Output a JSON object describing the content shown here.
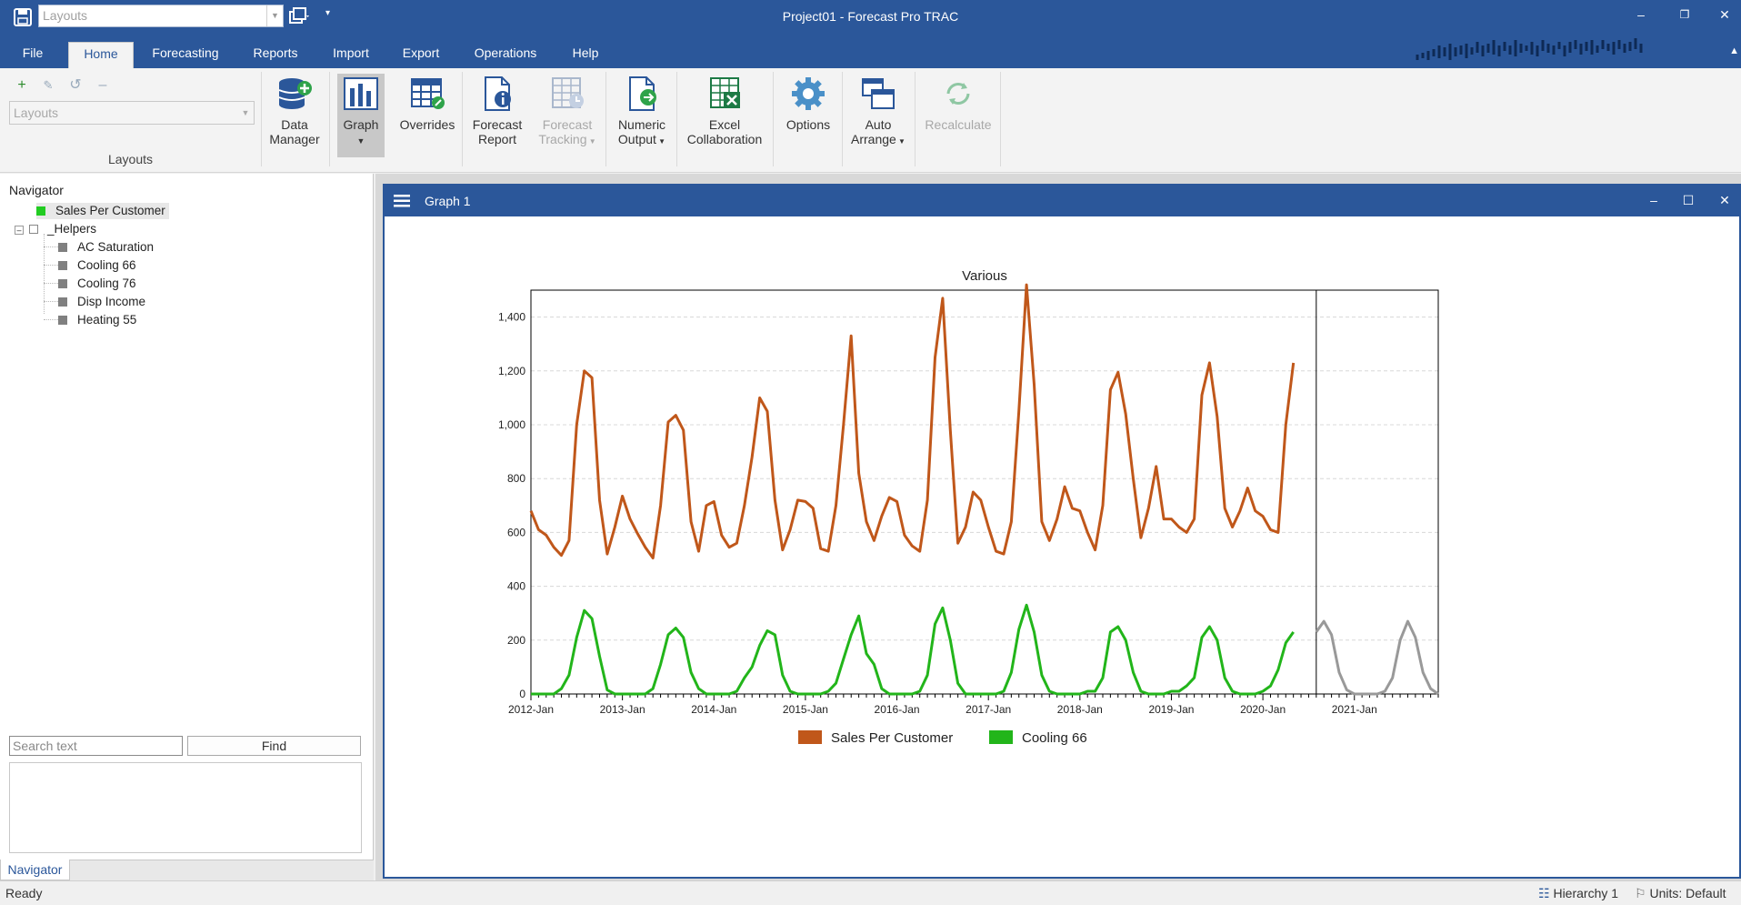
{
  "titlebar": {
    "layouts_combo": "Layouts",
    "title": "Project01 - Forecast Pro TRAC",
    "minimize": "–",
    "restore": "❐",
    "close": "✕"
  },
  "tabs": [
    "File",
    "Home",
    "Forecasting",
    "Reports",
    "Import",
    "Export",
    "Operations",
    "Help"
  ],
  "active_tab": "Home",
  "ribbon": {
    "layouts_combo": "Layouts",
    "layouts_group_label": "Layouts",
    "buttons": [
      {
        "line1": "Data",
        "line2": "Manager",
        "icon": "database-add-icon"
      },
      {
        "line1": "Graph",
        "line2": "",
        "icon": "graph-icon",
        "dropdown": true
      },
      {
        "line1": "Overrides",
        "line2": "",
        "icon": "table-edit-icon"
      },
      {
        "line1": "Forecast",
        "line2": "Report",
        "icon": "report-info-icon"
      },
      {
        "line1": "Forecast",
        "line2": "Tracking",
        "icon": "tracking-icon",
        "dropdown": true
      },
      {
        "line1": "Numeric",
        "line2": "Output",
        "icon": "export-icon",
        "dropdown": true
      },
      {
        "line1": "Excel",
        "line2": "Collaboration",
        "icon": "excel-icon"
      },
      {
        "line1": "Options",
        "line2": "",
        "icon": "gear-icon"
      },
      {
        "line1": "Auto",
        "line2": "Arrange",
        "icon": "arrange-icon",
        "dropdown": true
      },
      {
        "line1": "Recalculate",
        "line2": "",
        "icon": "refresh-icon"
      }
    ]
  },
  "navigator": {
    "title": "Navigator",
    "root": "Sales Per Customer",
    "group": "_Helpers",
    "children": [
      "AC Saturation",
      "Cooling 66",
      "Cooling 76",
      "Disp Income",
      "Heating 55"
    ],
    "search_placeholder": "Search text",
    "find_label": "Find",
    "tab_label": "Navigator"
  },
  "graph_window": {
    "title": "Graph 1",
    "minimize": "–",
    "maximize": "☐",
    "close": "✕"
  },
  "chart_data": {
    "type": "line",
    "title": "Various",
    "xlabel": "",
    "ylabel": "",
    "ylim": [
      0,
      1500
    ],
    "yticks": [
      0,
      200,
      400,
      600,
      800,
      1000,
      1200,
      1400
    ],
    "ytick_labels": [
      "0",
      "200",
      "400",
      "600",
      "800",
      "1,000",
      "1,200",
      "1,400"
    ],
    "x_labels": [
      "2012-Jan",
      "2013-Jan",
      "2014-Jan",
      "2015-Jan",
      "2016-Jan",
      "2017-Jan",
      "2018-Jan",
      "2019-Jan",
      "2020-Jan",
      "2021-Jan"
    ],
    "x_start": "2012-01",
    "x_end": "2021-12",
    "forecast_origin": "2020-08",
    "grid": true,
    "legend_position": "bottom",
    "series": [
      {
        "name": "Sales Per Customer",
        "color": "#c0571a",
        "values": [
          680,
          610,
          590,
          545,
          515,
          570,
          1000,
          1200,
          1175,
          720,
          520,
          620,
          735,
          650,
          595,
          545,
          505,
          700,
          1010,
          1035,
          980,
          640,
          530,
          700,
          715,
          590,
          545,
          560,
          700,
          880,
          1100,
          1050,
          720,
          535,
          610,
          720,
          715,
          690,
          540,
          530,
          700,
          1000,
          1330,
          820,
          640,
          570,
          660,
          730,
          715,
          590,
          550,
          530,
          720,
          1250,
          1470,
          980,
          560,
          620,
          750,
          720,
          620,
          530,
          520,
          640,
          1050,
          1520,
          1150,
          640,
          570,
          650,
          770,
          690,
          680,
          600,
          535,
          700,
          1130,
          1195,
          1040,
          800,
          580,
          690,
          845,
          650,
          650,
          620,
          600,
          650,
          1110,
          1230,
          1030,
          690,
          620,
          680,
          765,
          680,
          660,
          610,
          600,
          1000,
          1230
        ]
      },
      {
        "name": "Cooling 66",
        "color": "#22b51a",
        "values": [
          0,
          0,
          0,
          0,
          20,
          70,
          210,
          310,
          280,
          140,
          15,
          0,
          0,
          0,
          0,
          0,
          20,
          110,
          220,
          245,
          210,
          80,
          20,
          0,
          0,
          0,
          0,
          10,
          60,
          100,
          180,
          235,
          220,
          70,
          10,
          0,
          0,
          0,
          0,
          10,
          40,
          130,
          220,
          290,
          150,
          110,
          20,
          0,
          0,
          0,
          0,
          10,
          70,
          260,
          320,
          200,
          40,
          0,
          0,
          0,
          0,
          0,
          10,
          80,
          240,
          330,
          230,
          70,
          10,
          0,
          0,
          0,
          0,
          10,
          10,
          60,
          230,
          250,
          200,
          80,
          10,
          0,
          0,
          0,
          10,
          10,
          30,
          60,
          210,
          250,
          200,
          60,
          10,
          0,
          0,
          0,
          10,
          30,
          90,
          190,
          230
        ]
      },
      {
        "name": "Cooling 66 forecast",
        "color": "#999999",
        "x_start": "2020-08",
        "values": [
          230,
          270,
          220,
          80,
          15,
          0,
          0,
          0,
          0,
          10,
          60,
          200,
          270,
          210,
          80,
          20,
          0
        ]
      }
    ]
  },
  "legend": [
    "Sales Per Customer",
    "Cooling 66"
  ],
  "statusbar": {
    "ready": "Ready",
    "hierarchy": "Hierarchy 1",
    "units": "Units: Default"
  }
}
